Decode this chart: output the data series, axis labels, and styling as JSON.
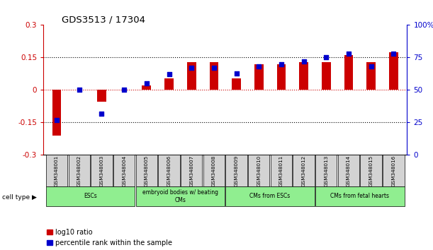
{
  "title": "GDS3513 / 17304",
  "samples": [
    "GSM348001",
    "GSM348002",
    "GSM348003",
    "GSM348004",
    "GSM348005",
    "GSM348006",
    "GSM348007",
    "GSM348008",
    "GSM348009",
    "GSM348010",
    "GSM348011",
    "GSM348012",
    "GSM348013",
    "GSM348014",
    "GSM348015",
    "GSM348016"
  ],
  "log10_ratio": [
    -0.21,
    0.001,
    -0.055,
    0.001,
    0.022,
    0.055,
    0.13,
    0.13,
    0.052,
    0.12,
    0.12,
    0.128,
    0.128,
    0.16,
    0.13,
    0.175
  ],
  "percentile_rank": [
    27,
    50,
    32,
    50,
    55,
    62,
    67,
    67,
    63,
    68,
    70,
    72,
    75,
    78,
    68,
    78
  ],
  "bar_color": "#CC0000",
  "dot_color": "#0000CC",
  "left_ylim": [
    -0.3,
    0.3
  ],
  "right_ylim": [
    0,
    100
  ],
  "left_yticks": [
    -0.3,
    -0.15,
    0,
    0.15,
    0.3
  ],
  "right_yticks": [
    0,
    25,
    50,
    75,
    100
  ],
  "right_yticklabels": [
    "0",
    "25",
    "50",
    "75",
    "100%"
  ],
  "hline_positions": [
    0.15,
    -0.15
  ],
  "zero_line_color": "#CC0000",
  "dotted_line_color": "#000000",
  "group_ranges": [
    [
      0,
      3,
      "ESCs"
    ],
    [
      4,
      7,
      "embryoid bodies w/ beating\nCMs"
    ],
    [
      8,
      11,
      "CMs from ESCs"
    ],
    [
      12,
      15,
      "CMs from fetal hearts"
    ]
  ],
  "group_color": "#90EE90",
  "sample_box_color": "#D3D3D3",
  "bar_width": 0.4
}
